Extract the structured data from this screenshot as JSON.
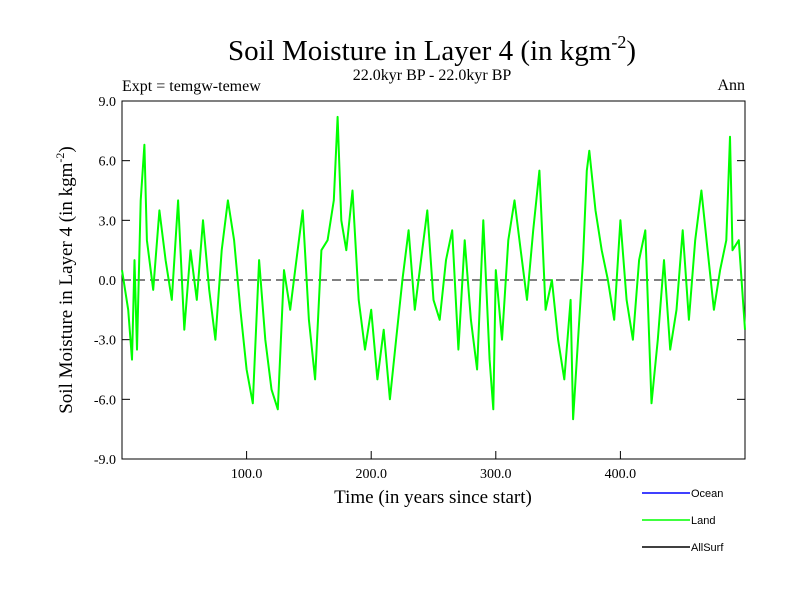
{
  "chart_data": {
    "type": "line",
    "title": "Soil Moisture in Layer 4 (in kgm",
    "title_sup": "-2",
    "title_close": ")",
    "subtitle": "22.0kyr BP - 22.0kyr BP",
    "left_label": "Expt = temgw-temew",
    "right_label": "Ann",
    "xlabel": "Time (in years since start)",
    "ylabel": "Soil Moisture in Layer 4 (in kgm",
    "ylabel_sup": "-2",
    "ylabel_close": ")",
    "xlim": [
      0,
      500
    ],
    "ylim": [
      -9,
      9
    ],
    "xticks": [
      100,
      200,
      300,
      400
    ],
    "xtick_labels": [
      "100.0",
      "200.0",
      "300.0",
      "400.0"
    ],
    "yticks": [
      -9,
      -6,
      -3,
      0,
      3,
      6,
      9
    ],
    "ytick_labels": [
      "-9.0",
      "-6.0",
      "-3.0",
      "0.0",
      "3.0",
      "6.0",
      "9.0"
    ],
    "zero_line": "dashed",
    "legend_position": "bottom-right",
    "series": [
      {
        "name": "Ocean",
        "color": "#0000ff",
        "x": [],
        "values": []
      },
      {
        "name": "Land",
        "color": "#00ff00",
        "x": [
          0,
          5,
          8,
          10,
          12,
          15,
          18,
          20,
          25,
          30,
          35,
          40,
          45,
          50,
          55,
          60,
          65,
          70,
          75,
          80,
          85,
          90,
          95,
          100,
          105,
          110,
          115,
          120,
          125,
          130,
          135,
          140,
          145,
          150,
          155,
          160,
          165,
          170,
          173,
          176,
          180,
          185,
          190,
          195,
          200,
          205,
          210,
          215,
          220,
          225,
          230,
          235,
          240,
          245,
          250,
          255,
          260,
          265,
          270,
          275,
          280,
          285,
          290,
          295,
          298,
          300,
          305,
          310,
          315,
          320,
          325,
          330,
          335,
          340,
          345,
          350,
          355,
          360,
          362,
          365,
          370,
          373,
          375,
          380,
          385,
          390,
          395,
          400,
          405,
          410,
          415,
          420,
          425,
          430,
          435,
          440,
          445,
          450,
          455,
          460,
          465,
          470,
          475,
          480,
          485,
          488,
          490,
          495,
          500
        ],
        "values": [
          0.5,
          -1.5,
          -4.0,
          1.0,
          -3.5,
          4.0,
          6.8,
          2.0,
          -0.5,
          3.5,
          1.0,
          -1.0,
          4.0,
          -2.5,
          1.5,
          -1.0,
          3.0,
          -0.5,
          -3.0,
          1.5,
          4.0,
          2.0,
          -1.5,
          -4.5,
          -6.2,
          1.0,
          -3.0,
          -5.5,
          -6.5,
          0.5,
          -1.5,
          1.0,
          3.5,
          -2.0,
          -5.0,
          1.5,
          2.0,
          4.0,
          8.2,
          3.0,
          1.5,
          4.5,
          -1.0,
          -3.5,
          -1.5,
          -5.0,
          -2.5,
          -6.0,
          -3.0,
          0.0,
          2.5,
          -1.5,
          1.0,
          3.5,
          -1.0,
          -2.0,
          1.0,
          2.5,
          -3.5,
          2.0,
          -2.0,
          -4.5,
          3.0,
          -4.0,
          -6.5,
          0.5,
          -3.0,
          2.0,
          4.0,
          1.5,
          -1.0,
          2.5,
          5.5,
          -1.5,
          0.0,
          -3.0,
          -5.0,
          -1.0,
          -7.0,
          -4.0,
          1.0,
          5.5,
          6.5,
          3.5,
          1.5,
          0.0,
          -2.0,
          3.0,
          -1.0,
          -3.0,
          1.0,
          2.5,
          -6.2,
          -3.0,
          1.0,
          -3.5,
          -1.5,
          2.5,
          -2.0,
          2.0,
          4.5,
          1.5,
          -1.5,
          0.5,
          2.0,
          7.2,
          1.5,
          2.0,
          -2.5
        ]
      },
      {
        "name": "AllSurf",
        "color": "#000000",
        "x": [],
        "values": []
      }
    ]
  }
}
